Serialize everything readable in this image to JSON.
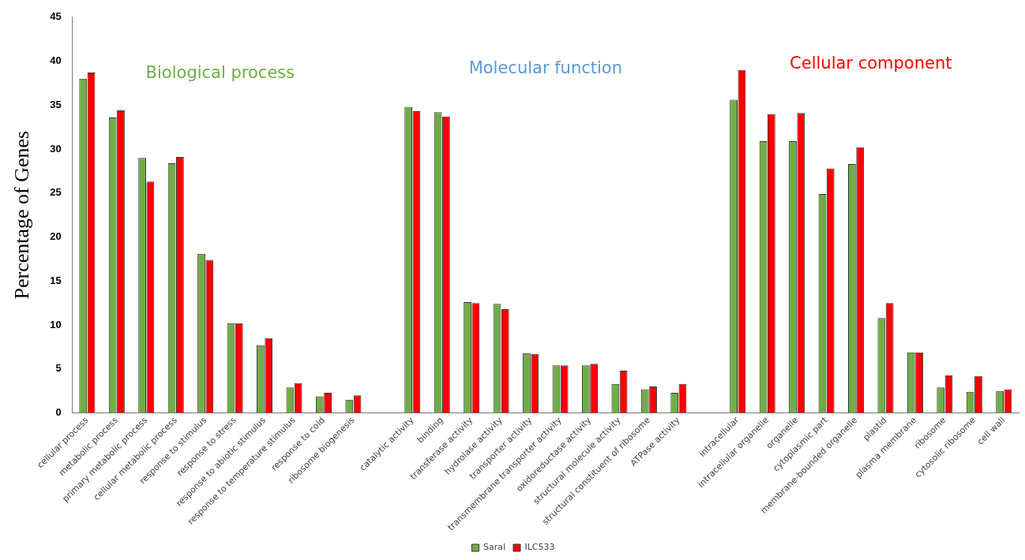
{
  "chart_data": {
    "type": "bar",
    "ylabel": "Percentage of Genes",
    "annotations": [
      "Biological process",
      "Molecular function",
      "Cellular component"
    ],
    "categories": [
      "cellular process",
      "metabolic process",
      "primary metabolic process",
      "cellular metabolic process",
      "response to stimulus",
      "response to stress",
      "response to abiotic stimulus",
      "response to temperature stimulus",
      "response to cold",
      "ribosome biogenesis",
      null,
      "catalytic activity",
      "binding",
      "transferase activity",
      "hydrolase activity",
      "transporter activity",
      "transmembrane transporter activity",
      "oxidoreductase activity",
      "structural molecule activity",
      "structural constituent of ribosome",
      "ATPase activity",
      null,
      "intracellular",
      "intracellular organelle",
      "organelle",
      "cytoplasmic part",
      "membrane-bounded organelle",
      "plastid",
      "plasma membrane",
      "ribosome",
      "cytosolic ribosome",
      "cell wall"
    ],
    "series": [
      {
        "name": "Saral",
        "color": "#70ad47",
        "values": [
          38.0,
          33.6,
          29.0,
          28.4,
          18.1,
          10.2,
          7.7,
          2.9,
          1.9,
          1.5,
          null,
          34.8,
          34.2,
          12.6,
          12.4,
          6.8,
          5.4,
          5.4,
          3.3,
          2.7,
          2.3,
          null,
          35.6,
          30.9,
          30.9,
          24.9,
          28.3,
          10.8,
          6.9,
          2.9,
          2.4,
          2.5
        ]
      },
      {
        "name": "ILC533",
        "color": "#ff0000",
        "values": [
          38.7,
          34.4,
          26.3,
          29.1,
          17.4,
          10.2,
          8.5,
          3.4,
          2.3,
          2.0,
          null,
          34.3,
          33.7,
          12.5,
          11.8,
          6.7,
          5.4,
          5.6,
          4.8,
          3.0,
          3.3,
          null,
          39.0,
          34.0,
          34.1,
          27.8,
          30.2,
          12.5,
          6.9,
          4.3,
          4.2,
          2.7
        ]
      }
    ],
    "ylim": [
      0,
      45
    ],
    "yticks": [
      0,
      5,
      10,
      15,
      20,
      25,
      30,
      35,
      40,
      45
    ],
    "grid": false,
    "legend": "bottom"
  }
}
